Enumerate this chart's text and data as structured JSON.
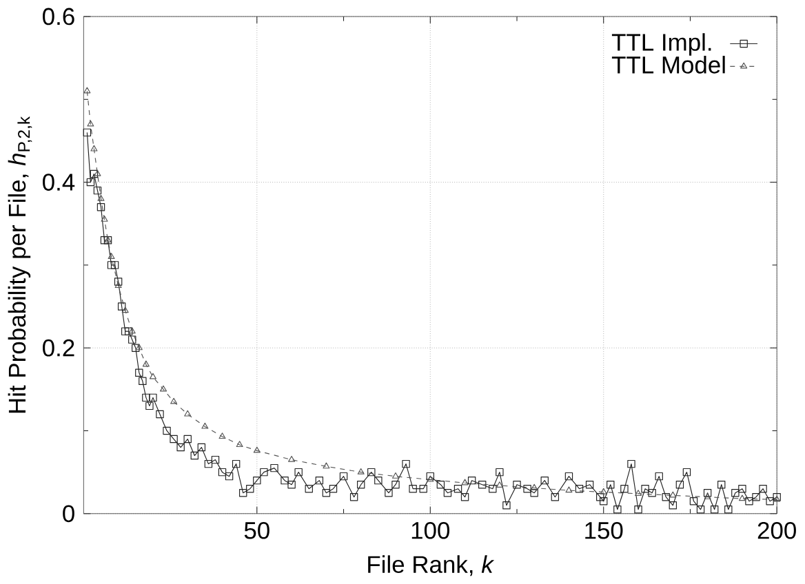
{
  "chart_data": {
    "type": "line",
    "xlabel": "File Rank, *k*",
    "ylabel": "Hit Probability per File, *h*$_{P,2,k}$",
    "xlim": [
      0,
      200
    ],
    "ylim": [
      0,
      0.6
    ],
    "xticks": [
      50,
      100,
      150,
      200
    ],
    "yticks": [
      0,
      0.2,
      0.4,
      0.6
    ],
    "grid": true,
    "legend": "top right",
    "series": [
      {
        "name": "TTL Impl.",
        "color": "#222222",
        "marker": "square",
        "line_style": "solid",
        "x": [
          1,
          2,
          3,
          4,
          5,
          6,
          7,
          8,
          9,
          10,
          11,
          12,
          13,
          14,
          15,
          16,
          17,
          18,
          19,
          20,
          22,
          24,
          26,
          28,
          30,
          32,
          34,
          36,
          38,
          40,
          42,
          44,
          46,
          48,
          50,
          52,
          55,
          58,
          60,
          62,
          65,
          68,
          70,
          72,
          75,
          78,
          80,
          83,
          85,
          88,
          90,
          93,
          95,
          98,
          100,
          103,
          105,
          108,
          110,
          112,
          115,
          118,
          120,
          122,
          125,
          128,
          130,
          133,
          136,
          140,
          143,
          146,
          149,
          150,
          152,
          154,
          156,
          158,
          160,
          162,
          164,
          166,
          168,
          170,
          172,
          174,
          176,
          178,
          180,
          182,
          184,
          186,
          188,
          190,
          192,
          194,
          196,
          198,
          200
        ],
        "values": [
          0.46,
          0.4,
          0.41,
          0.39,
          0.37,
          0.33,
          0.33,
          0.3,
          0.3,
          0.28,
          0.25,
          0.22,
          0.22,
          0.21,
          0.2,
          0.17,
          0.16,
          0.14,
          0.13,
          0.14,
          0.12,
          0.1,
          0.09,
          0.08,
          0.09,
          0.07,
          0.08,
          0.06,
          0.065,
          0.05,
          0.045,
          0.06,
          0.025,
          0.03,
          0.04,
          0.05,
          0.055,
          0.04,
          0.035,
          0.05,
          0.03,
          0.04,
          0.025,
          0.03,
          0.045,
          0.02,
          0.035,
          0.05,
          0.04,
          0.025,
          0.035,
          0.06,
          0.03,
          0.03,
          0.045,
          0.035,
          0.025,
          0.03,
          0.02,
          0.04,
          0.035,
          0.03,
          0.05,
          0.01,
          0.035,
          0.03,
          0.025,
          0.04,
          0.02,
          0.045,
          0.03,
          0.035,
          0.02,
          0.015,
          0.035,
          0.005,
          0.03,
          0.06,
          0.005,
          0.03,
          0.025,
          0.045,
          0.02,
          0.01,
          0.035,
          0.05,
          0.015,
          0.005,
          0.025,
          0.005,
          0.035,
          0.005,
          0.025,
          0.03,
          0.015,
          0.02,
          0.03,
          0.015,
          0.02
        ]
      },
      {
        "name": "TTL Model",
        "color": "#555555",
        "marker": "triangle",
        "line_style": "dashed",
        "x": [
          1,
          2,
          3,
          4,
          5,
          6,
          7,
          8,
          10,
          12,
          14,
          16,
          18,
          20,
          23,
          26,
          30,
          35,
          40,
          45,
          50,
          60,
          70,
          80,
          90,
          100,
          110,
          120,
          130,
          140,
          150,
          160,
          170,
          180,
          190,
          200
        ],
        "values": [
          0.51,
          0.47,
          0.44,
          0.41,
          0.38,
          0.355,
          0.33,
          0.31,
          0.275,
          0.245,
          0.22,
          0.2,
          0.18,
          0.165,
          0.15,
          0.135,
          0.12,
          0.105,
          0.093,
          0.083,
          0.076,
          0.065,
          0.057,
          0.05,
          0.045,
          0.041,
          0.037,
          0.034,
          0.031,
          0.028,
          0.026,
          0.024,
          0.022,
          0.02,
          0.018,
          0.017
        ]
      }
    ]
  }
}
